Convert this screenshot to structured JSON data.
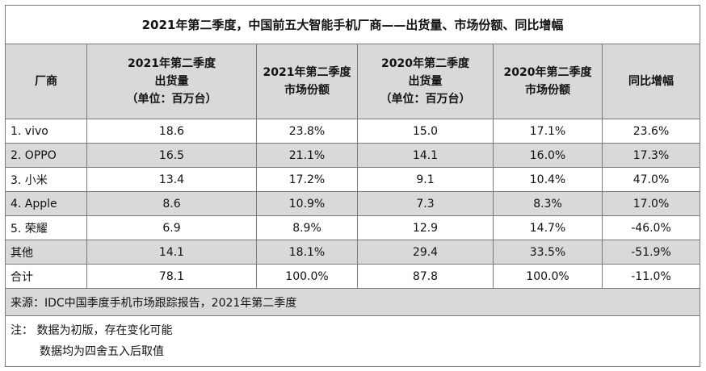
{
  "title": "2021年第二季度，中国前五大智能手机厂商——出货量、市场份额、同比增幅",
  "headers": {
    "vendor": "厂商",
    "q2_2021_shipments": [
      "2021年第二季度",
      "出货量",
      "（单位：百万台）"
    ],
    "q2_2021_share": [
      "2021年第二季度",
      "市场份额"
    ],
    "q2_2020_shipments": [
      "2020年第二季度",
      "出货量",
      "（单位：百万台）"
    ],
    "q2_2020_share": [
      "2020年第二季度",
      "市场份额"
    ],
    "yoy": "同比增幅"
  },
  "rows": [
    {
      "vendor": "1. vivo",
      "s2021": "18.6",
      "sh2021": "23.8%",
      "s2020": "15.0",
      "sh2020": "17.1%",
      "yoy": "23.6%"
    },
    {
      "vendor": "2. OPPO",
      "s2021": "16.5",
      "sh2021": "21.1%",
      "s2020": "14.1",
      "sh2020": "16.0%",
      "yoy": "17.3%"
    },
    {
      "vendor": "3. 小米",
      "s2021": "13.4",
      "sh2021": "17.2%",
      "s2020": "9.1",
      "sh2020": "10.4%",
      "yoy": "47.0%"
    },
    {
      "vendor": "4. Apple",
      "s2021": "8.6",
      "sh2021": "10.9%",
      "s2020": "7.3",
      "sh2020": "8.3%",
      "yoy": "17.0%"
    },
    {
      "vendor": "5. 荣耀",
      "s2021": "6.9",
      "sh2021": "8.9%",
      "s2020": "12.9",
      "sh2020": "14.7%",
      "yoy": "-46.0%"
    },
    {
      "vendor": "其他",
      "s2021": "14.1",
      "sh2021": "18.1%",
      "s2020": "29.4",
      "sh2020": "33.5%",
      "yoy": "-51.9%"
    },
    {
      "vendor": "合计",
      "s2021": "78.1",
      "sh2021": "100.0%",
      "s2020": "87.8",
      "sh2020": "100.0%",
      "yoy": "-11.0%"
    }
  ],
  "source": "来源：IDC中国季度手机市场跟踪报告，2021年第二季度",
  "notes": {
    "line1": "注：  数据为初版，存在变化可能",
    "line2": "数据均为四舍五入后取值"
  },
  "colors": {
    "shade": "#d9d9d9",
    "border": "#7a7a7a"
  }
}
